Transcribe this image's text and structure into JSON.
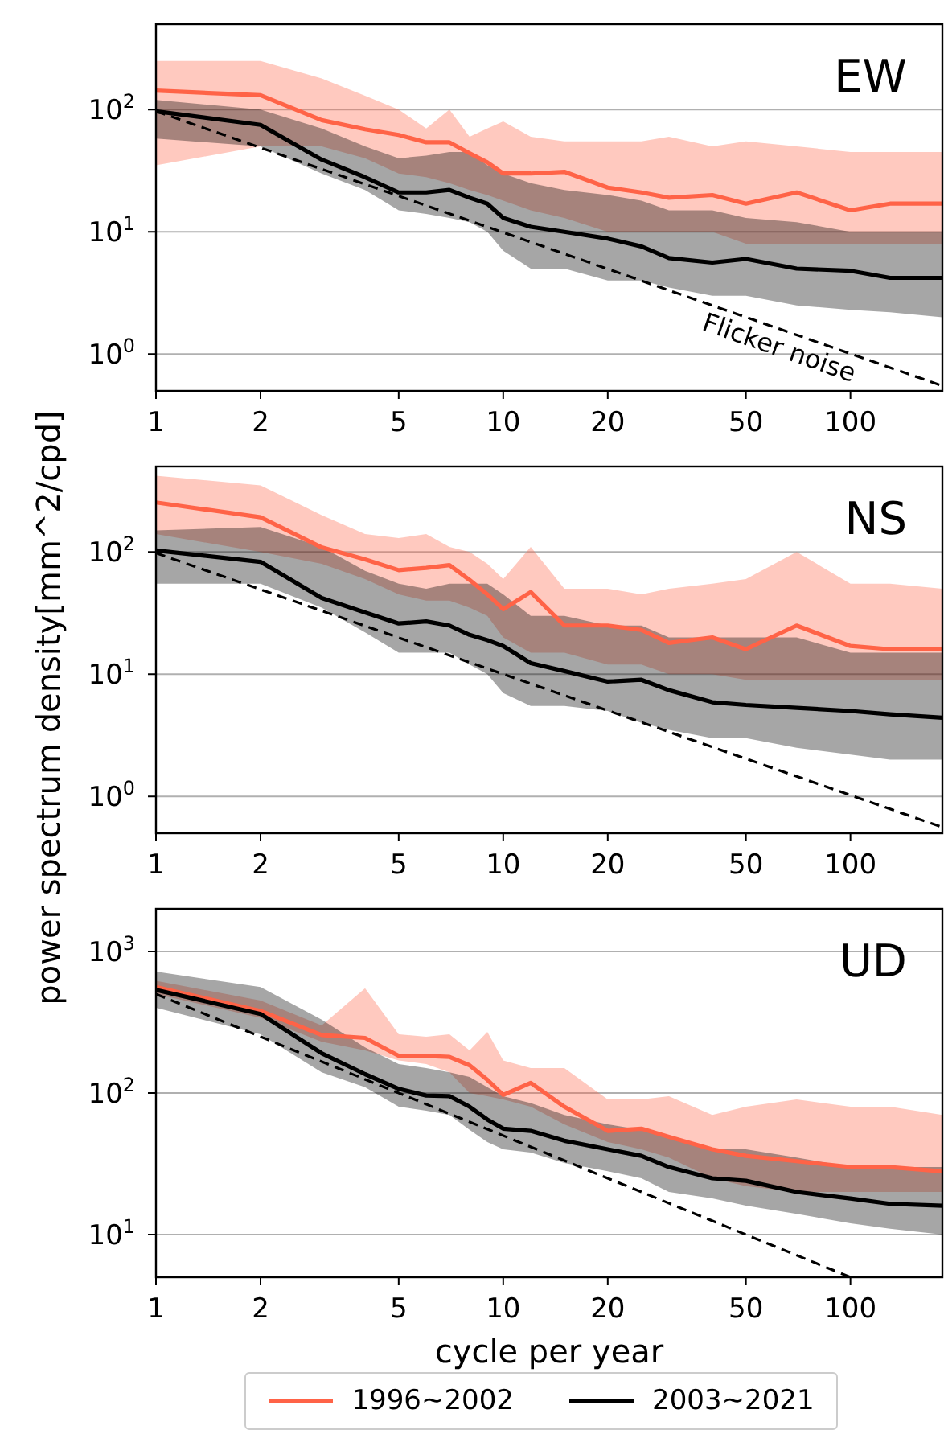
{
  "chart_data": [
    {
      "type": "line",
      "title": "EW",
      "x": [
        1,
        2,
        3,
        4,
        5,
        6,
        7,
        8,
        9,
        10,
        12,
        15,
        20,
        25,
        30,
        40,
        50,
        70,
        100,
        130,
        184
      ],
      "xlim": [
        1,
        184
      ],
      "xticks": [
        1,
        2,
        5,
        10,
        20,
        50,
        100
      ],
      "ylim": [
        0.5,
        500
      ],
      "yticks": [
        {
          "value": 1,
          "label": "10$^{0}$"
        },
        {
          "value": 10,
          "label": "10$^{1}$"
        },
        {
          "value": 100,
          "label": "10$^{2}$"
        }
      ],
      "log": "xy",
      "grid": "y",
      "annotations": [
        "Flicker noise"
      ],
      "series": [
        {
          "color": "#ff6347",
          "values": [
            143,
            131,
            82,
            69,
            62,
            54,
            54,
            44,
            37,
            30,
            30,
            31,
            23,
            21,
            19,
            20,
            17,
            21,
            15,
            17,
            17
          ],
          "lower": [
            35,
            50,
            50,
            40,
            30,
            28,
            25,
            22,
            20,
            18,
            15,
            13,
            10,
            10,
            10,
            10,
            8,
            8,
            8,
            8,
            8
          ],
          "upper": [
            250,
            250,
            180,
            130,
            100,
            70,
            100,
            60,
            70,
            80,
            60,
            55,
            55,
            55,
            60,
            50,
            55,
            50,
            45,
            45,
            45
          ]
        },
        {
          "color": "#000000",
          "values": [
            97,
            75,
            39,
            28,
            21,
            21,
            22,
            19,
            17,
            13,
            11,
            10,
            8.8,
            7.6,
            6.1,
            5.6,
            6,
            5,
            4.8,
            4.2,
            4.2
          ],
          "lower": [
            58,
            50,
            30,
            22,
            15,
            14,
            13,
            12,
            10,
            7,
            5,
            5,
            4,
            4,
            3.5,
            3,
            3,
            2.5,
            2.3,
            2.2,
            2
          ],
          "upper": [
            120,
            100,
            70,
            50,
            40,
            42,
            45,
            45,
            35,
            30,
            25,
            22,
            20,
            18,
            15,
            15,
            13,
            12,
            10,
            10,
            10
          ]
        },
        {
          "type": "line",
          "color": "#000000",
          "line_style": "dashed",
          "x": [
            1,
            184
          ],
          "values": [
            97,
            0.55
          ]
        }
      ]
    },
    {
      "type": "line",
      "title": "NS",
      "ylabel": "power spectrum density[mm^2/cpd]",
      "x": [
        1,
        2,
        3,
        4,
        5,
        6,
        7,
        8,
        9,
        10,
        12,
        15,
        20,
        25,
        30,
        40,
        50,
        70,
        100,
        130,
        184
      ],
      "xlim": [
        1,
        184
      ],
      "xticks": [
        1,
        2,
        5,
        10,
        20,
        50,
        100
      ],
      "ylim": [
        0.5,
        500
      ],
      "yticks": [
        {
          "value": 1,
          "label": "10$^{0}$"
        },
        {
          "value": 10,
          "label": "10$^{1}$"
        },
        {
          "value": 100,
          "label": "10$^{2}$"
        }
      ],
      "log": "xy",
      "grid": "y",
      "series": [
        {
          "color": "#ff6347",
          "values": [
            254,
            192,
            109,
            87,
            71,
            74,
            78,
            59,
            45,
            34,
            47,
            25,
            25,
            23,
            18,
            20,
            16,
            25,
            17,
            16,
            16
          ],
          "lower": [
            140,
            100,
            80,
            60,
            45,
            40,
            40,
            35,
            30,
            20,
            15,
            15,
            12,
            12,
            10,
            10,
            9,
            9,
            9,
            9,
            9
          ],
          "upper": [
            420,
            350,
            200,
            140,
            130,
            140,
            110,
            100,
            80,
            60,
            110,
            50,
            50,
            45,
            50,
            55,
            60,
            100,
            55,
            55,
            50
          ]
        },
        {
          "color": "#000000",
          "values": [
            103,
            83,
            42,
            32,
            26,
            27,
            25,
            21,
            19,
            17,
            12.3,
            10.6,
            8.7,
            9,
            7.4,
            5.9,
            5.6,
            5.3,
            5,
            4.7,
            4.4
          ],
          "lower": [
            55,
            55,
            35,
            22,
            15,
            15,
            15,
            12,
            10,
            7,
            5.5,
            5.5,
            5,
            4,
            3.5,
            3,
            3,
            2.5,
            2.2,
            2,
            2
          ],
          "upper": [
            150,
            160,
            110,
            70,
            55,
            50,
            55,
            55,
            55,
            45,
            30,
            30,
            25,
            25,
            20,
            20,
            20,
            20,
            15,
            15,
            15
          ]
        },
        {
          "type": "line",
          "color": "#000000",
          "line_style": "dashed",
          "x": [
            1,
            184
          ],
          "values": [
            98,
            0.56
          ]
        }
      ]
    },
    {
      "type": "line",
      "title": "UD",
      "xlabel": "cycle per year",
      "x": [
        1,
        2,
        3,
        4,
        5,
        6,
        7,
        8,
        9,
        10,
        12,
        15,
        20,
        25,
        30,
        40,
        50,
        70,
        100,
        130,
        184
      ],
      "xlim": [
        1,
        184
      ],
      "xticks": [
        1,
        2,
        5,
        10,
        20,
        50,
        100
      ],
      "ylim": [
        5,
        2000
      ],
      "yticks": [
        {
          "value": 10,
          "label": "10$^{1}$"
        },
        {
          "value": 100,
          "label": "10$^{2}$"
        },
        {
          "value": 1000,
          "label": "10$^{3}$"
        }
      ],
      "log": "xy",
      "grid": "y",
      "legend": "bottom",
      "series": [
        {
          "name": "1996~2002",
          "color": "#ff6347",
          "values": [
            560,
            380,
            257,
            245,
            183,
            183,
            180,
            157,
            124,
            97,
            118,
            80,
            54,
            56,
            49,
            40,
            36,
            33,
            30,
            30,
            28
          ],
          "lower": [
            500,
            340,
            230,
            200,
            170,
            160,
            140,
            100,
            95,
            90,
            80,
            60,
            45,
            40,
            35,
            25,
            22,
            20,
            20,
            20,
            20
          ],
          "upper": [
            620,
            450,
            300,
            550,
            260,
            250,
            260,
            200,
            270,
            170,
            150,
            150,
            90,
            90,
            95,
            70,
            80,
            90,
            80,
            80,
            70
          ]
        },
        {
          "name": "2003~2021",
          "color": "#000000",
          "values": [
            535,
            362,
            191,
            136,
            107,
            96,
            95,
            80,
            65,
            56,
            54,
            46,
            40,
            36,
            30,
            25,
            24,
            20,
            18,
            16.5,
            16
          ],
          "lower": [
            400,
            260,
            140,
            110,
            80,
            75,
            70,
            55,
            45,
            40,
            38,
            32,
            28,
            25,
            20,
            18,
            16,
            14,
            12,
            11,
            10
          ],
          "upper": [
            720,
            560,
            330,
            210,
            160,
            150,
            140,
            130,
            110,
            95,
            85,
            70,
            60,
            55,
            50,
            40,
            40,
            35,
            30,
            30,
            30
          ]
        },
        {
          "type": "line",
          "color": "#000000",
          "line_style": "dashed",
          "x": [
            1,
            100
          ],
          "values": [
            500,
            5
          ]
        }
      ]
    }
  ]
}
